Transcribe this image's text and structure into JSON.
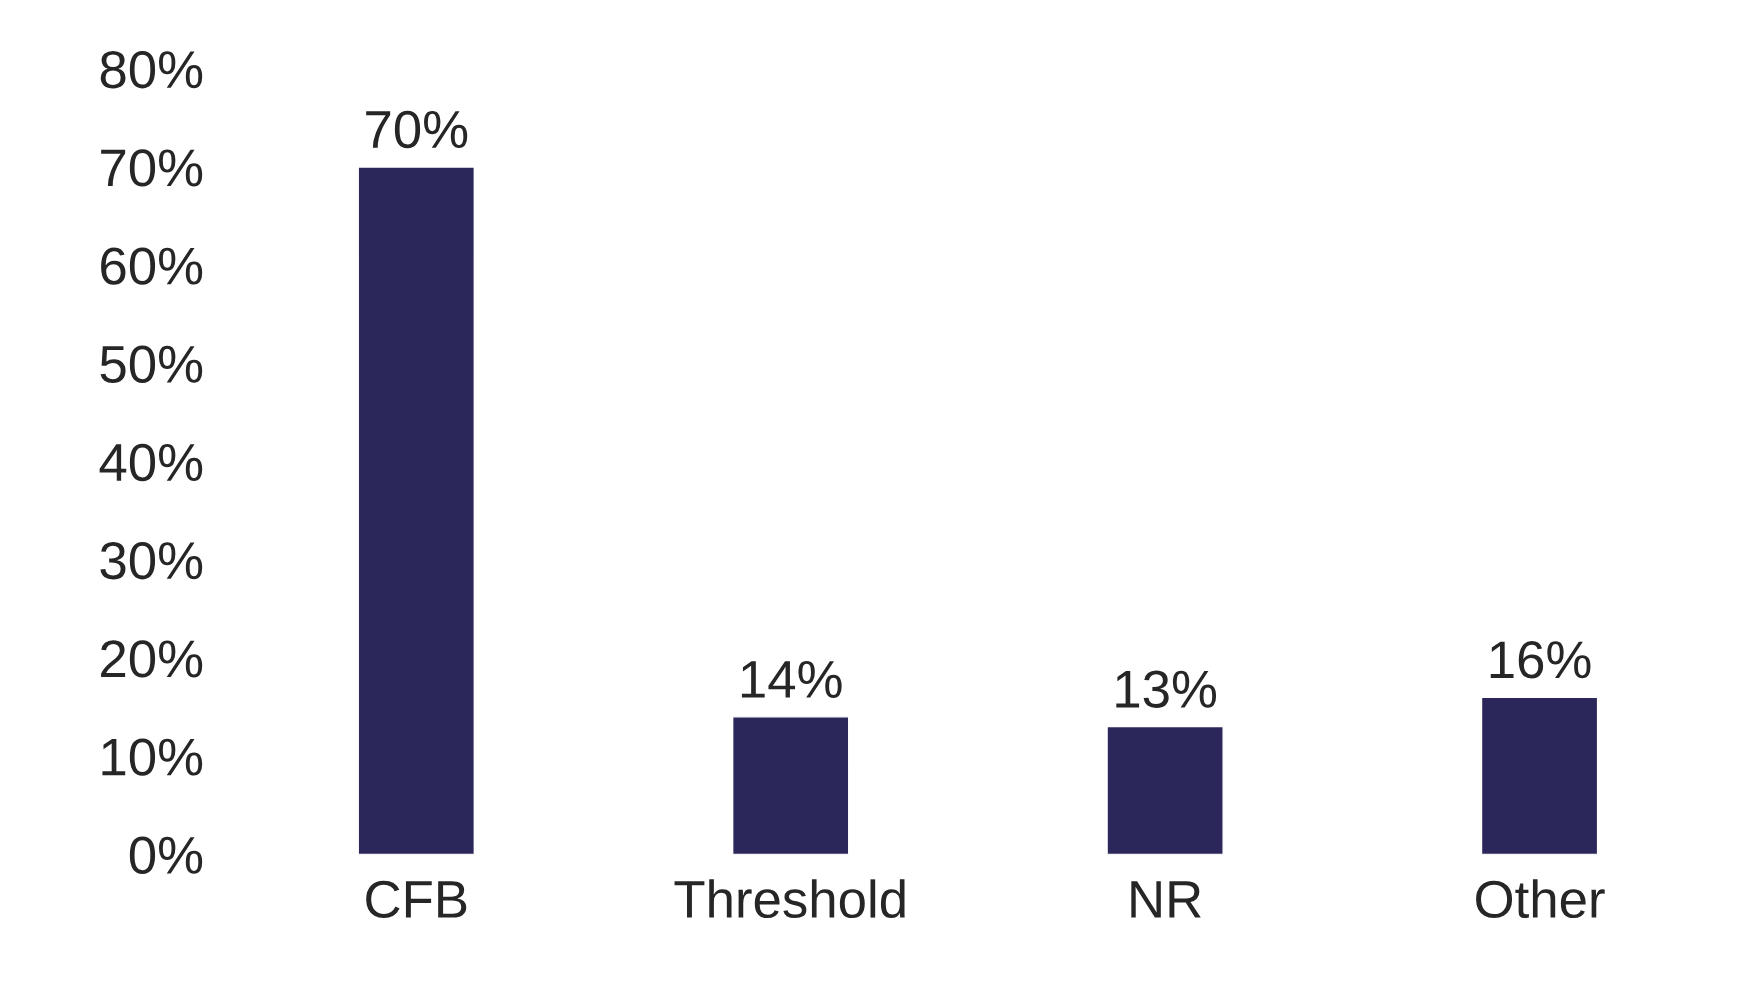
{
  "chart_data": {
    "type": "bar",
    "categories": [
      "CFB",
      "Threshold",
      "NR",
      "Other"
    ],
    "values": [
      70,
      14,
      13,
      16
    ],
    "value_labels": [
      "70%",
      "14%",
      "13%",
      "16%"
    ],
    "color": "#2b275a",
    "ylim": [
      0,
      80
    ],
    "yticks": [
      {
        "value": 0,
        "label": "0%"
      },
      {
        "value": 10,
        "label": "10%"
      },
      {
        "value": 20,
        "label": "20%"
      },
      {
        "value": 30,
        "label": "30%"
      },
      {
        "value": 40,
        "label": "40%"
      },
      {
        "value": 50,
        "label": "50%"
      },
      {
        "value": 60,
        "label": "60%"
      },
      {
        "value": 70,
        "label": "70%"
      },
      {
        "value": 80,
        "label": "80%"
      }
    ],
    "grid": false,
    "legend": false
  }
}
